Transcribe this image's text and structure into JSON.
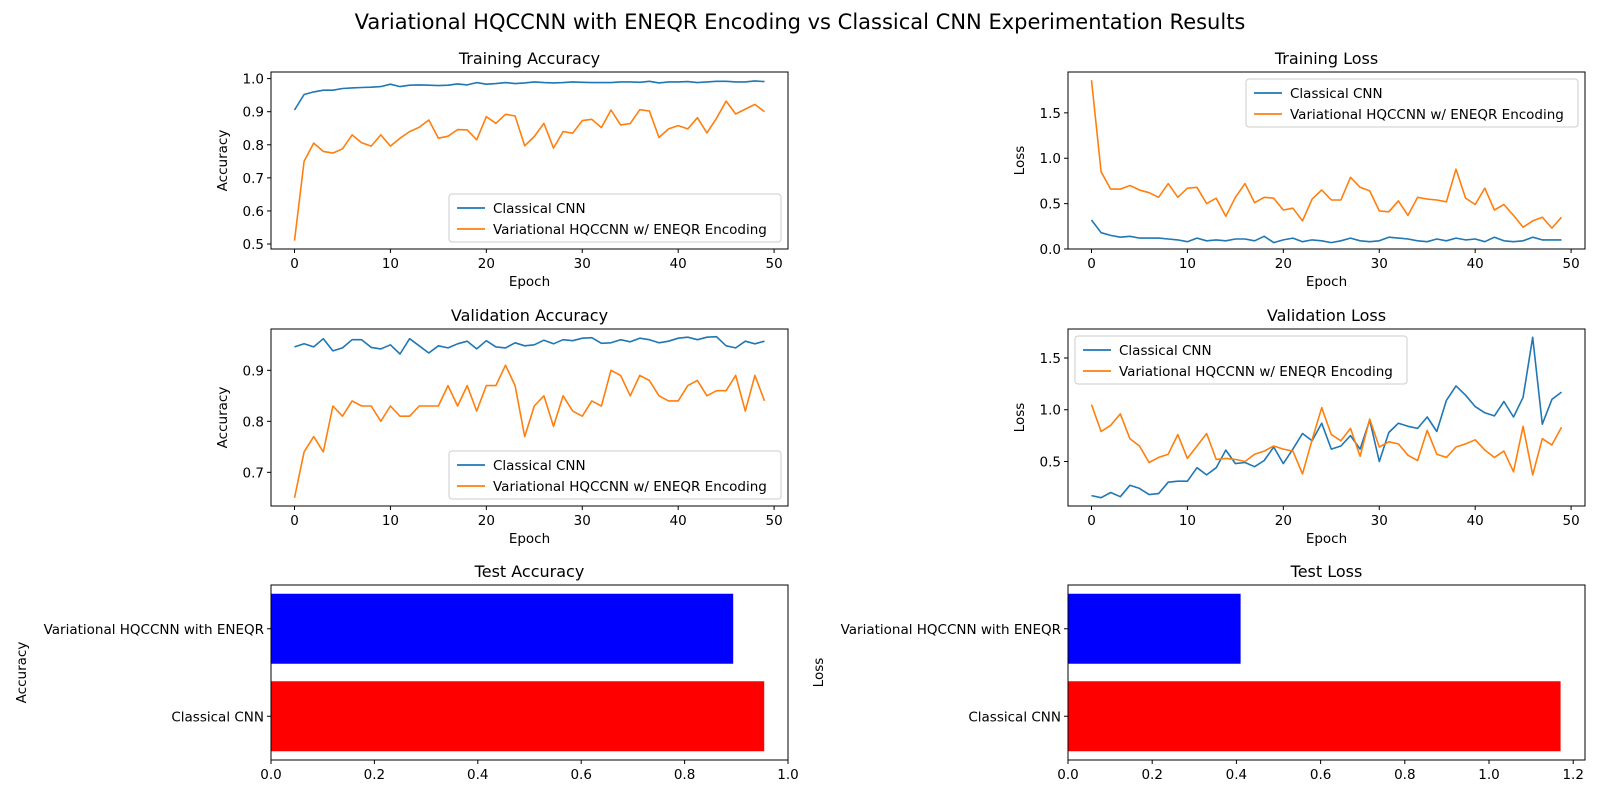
{
  "figure": {
    "title": "Variational HQCCNN with ENEQR Encoding vs Classical CNN Experimentation Results"
  },
  "colors": {
    "classical": "#1f77b4",
    "hqccnn": "#ff7f0e",
    "bar_hqccnn": "#0000ff",
    "bar_classical": "#ff0000"
  },
  "chart_data": [
    {
      "id": "training-accuracy",
      "type": "line",
      "title": "Training Accuracy",
      "xlabel": "Epoch",
      "ylabel": "Accuracy",
      "xlim": [
        -2.45,
        51.45
      ],
      "ylim": [
        0.485,
        1.02
      ],
      "xticks": [
        0,
        10,
        20,
        30,
        40,
        50
      ],
      "yticks": [
        0.5,
        0.6,
        0.7,
        0.8,
        0.9,
        1.0
      ],
      "ytick_decimals": 1,
      "legend_position": "lower-right",
      "x": [
        0,
        1,
        2,
        3,
        4,
        5,
        6,
        7,
        8,
        9,
        10,
        11,
        12,
        13,
        14,
        15,
        16,
        17,
        18,
        19,
        20,
        21,
        22,
        23,
        24,
        25,
        26,
        27,
        28,
        29,
        30,
        31,
        32,
        33,
        34,
        35,
        36,
        37,
        38,
        39,
        40,
        41,
        42,
        43,
        44,
        45,
        46,
        47,
        48,
        49
      ],
      "series": [
        {
          "name": "Classical CNN",
          "color_key": "classical",
          "values": [
            0.905,
            0.952,
            0.96,
            0.965,
            0.965,
            0.97,
            0.972,
            0.973,
            0.974,
            0.976,
            0.983,
            0.976,
            0.98,
            0.981,
            0.98,
            0.979,
            0.98,
            0.984,
            0.981,
            0.988,
            0.983,
            0.985,
            0.988,
            0.985,
            0.987,
            0.99,
            0.988,
            0.987,
            0.988,
            0.99,
            0.989,
            0.988,
            0.988,
            0.988,
            0.99,
            0.99,
            0.989,
            0.992,
            0.987,
            0.99,
            0.99,
            0.991,
            0.988,
            0.99,
            0.992,
            0.992,
            0.99,
            0.99,
            0.993,
            0.991
          ]
        },
        {
          "name": "Variational HQCCNN w/ ENEQR Encoding",
          "color_key": "hqccnn",
          "values": [
            0.51,
            0.75,
            0.805,
            0.78,
            0.775,
            0.788,
            0.83,
            0.806,
            0.796,
            0.83,
            0.796,
            0.82,
            0.84,
            0.853,
            0.875,
            0.82,
            0.826,
            0.846,
            0.845,
            0.815,
            0.885,
            0.865,
            0.892,
            0.887,
            0.797,
            0.825,
            0.865,
            0.79,
            0.84,
            0.835,
            0.873,
            0.877,
            0.852,
            0.905,
            0.86,
            0.864,
            0.906,
            0.902,
            0.822,
            0.848,
            0.858,
            0.848,
            0.882,
            0.836,
            0.88,
            0.932,
            0.893,
            0.908,
            0.922,
            0.9
          ]
        }
      ]
    },
    {
      "id": "training-loss",
      "type": "line",
      "title": "Training Loss",
      "xlabel": "Epoch",
      "ylabel": "Loss",
      "xlim": [
        -2.45,
        51.45
      ],
      "ylim": [
        0,
        1.95
      ],
      "xticks": [
        0,
        10,
        20,
        30,
        40,
        50
      ],
      "yticks": [
        0.0,
        0.5,
        1.0,
        1.5
      ],
      "ytick_decimals": 1,
      "legend_position": "upper-right",
      "x": [
        0,
        1,
        2,
        3,
        4,
        5,
        6,
        7,
        8,
        9,
        10,
        11,
        12,
        13,
        14,
        15,
        16,
        17,
        18,
        19,
        20,
        21,
        22,
        23,
        24,
        25,
        26,
        27,
        28,
        29,
        30,
        31,
        32,
        33,
        34,
        35,
        36,
        37,
        38,
        39,
        40,
        41,
        42,
        43,
        44,
        45,
        46,
        47,
        48,
        49
      ],
      "series": [
        {
          "name": "Classical CNN",
          "color_key": "classical",
          "values": [
            0.32,
            0.18,
            0.15,
            0.13,
            0.14,
            0.12,
            0.12,
            0.12,
            0.11,
            0.1,
            0.08,
            0.12,
            0.09,
            0.1,
            0.09,
            0.11,
            0.11,
            0.09,
            0.14,
            0.07,
            0.1,
            0.12,
            0.08,
            0.1,
            0.09,
            0.07,
            0.09,
            0.12,
            0.09,
            0.08,
            0.09,
            0.13,
            0.12,
            0.11,
            0.09,
            0.08,
            0.11,
            0.09,
            0.12,
            0.1,
            0.11,
            0.08,
            0.13,
            0.09,
            0.08,
            0.09,
            0.13,
            0.1,
            0.1,
            0.1
          ]
        },
        {
          "name": "Variational HQCCNN w/ ENEQR Encoding",
          "color_key": "hqccnn",
          "values": [
            1.86,
            0.85,
            0.66,
            0.66,
            0.7,
            0.65,
            0.62,
            0.57,
            0.72,
            0.57,
            0.67,
            0.68,
            0.5,
            0.56,
            0.36,
            0.57,
            0.72,
            0.51,
            0.57,
            0.56,
            0.43,
            0.45,
            0.31,
            0.55,
            0.65,
            0.54,
            0.54,
            0.79,
            0.68,
            0.64,
            0.42,
            0.41,
            0.53,
            0.37,
            0.57,
            0.55,
            0.54,
            0.52,
            0.88,
            0.56,
            0.49,
            0.67,
            0.43,
            0.49,
            0.37,
            0.24,
            0.31,
            0.35,
            0.23,
            0.35
          ]
        }
      ]
    },
    {
      "id": "validation-accuracy",
      "type": "line",
      "title": "Validation Accuracy",
      "xlabel": "Epoch",
      "ylabel": "Accuracy",
      "xlim": [
        -2.45,
        51.45
      ],
      "ylim": [
        0.634,
        0.981
      ],
      "xticks": [
        0,
        10,
        20,
        30,
        40,
        50
      ],
      "yticks": [
        0.7,
        0.8,
        0.9
      ],
      "ytick_decimals": 1,
      "legend_position": "lower-right",
      "x": [
        0,
        1,
        2,
        3,
        4,
        5,
        6,
        7,
        8,
        9,
        10,
        11,
        12,
        13,
        14,
        15,
        16,
        17,
        18,
        19,
        20,
        21,
        22,
        23,
        24,
        25,
        26,
        27,
        28,
        29,
        30,
        31,
        32,
        33,
        34,
        35,
        36,
        37,
        38,
        39,
        40,
        41,
        42,
        43,
        44,
        45,
        46,
        47,
        48,
        49
      ],
      "series": [
        {
          "name": "Classical CNN",
          "color_key": "classical",
          "values": [
            0.946,
            0.952,
            0.946,
            0.962,
            0.938,
            0.944,
            0.96,
            0.96,
            0.945,
            0.942,
            0.95,
            0.932,
            0.962,
            0.948,
            0.934,
            0.948,
            0.944,
            0.952,
            0.957,
            0.942,
            0.958,
            0.946,
            0.944,
            0.954,
            0.948,
            0.95,
            0.959,
            0.952,
            0.96,
            0.958,
            0.963,
            0.964,
            0.953,
            0.954,
            0.96,
            0.956,
            0.963,
            0.96,
            0.954,
            0.957,
            0.963,
            0.965,
            0.96,
            0.965,
            0.966,
            0.948,
            0.944,
            0.957,
            0.952,
            0.957
          ]
        },
        {
          "name": "Variational HQCCNN w/ ENEQR Encoding",
          "color_key": "hqccnn",
          "values": [
            0.65,
            0.74,
            0.77,
            0.74,
            0.83,
            0.81,
            0.84,
            0.83,
            0.83,
            0.8,
            0.83,
            0.81,
            0.81,
            0.83,
            0.83,
            0.83,
            0.87,
            0.83,
            0.87,
            0.82,
            0.87,
            0.87,
            0.91,
            0.87,
            0.77,
            0.83,
            0.85,
            0.79,
            0.85,
            0.82,
            0.81,
            0.84,
            0.83,
            0.9,
            0.89,
            0.85,
            0.89,
            0.88,
            0.85,
            0.84,
            0.84,
            0.87,
            0.88,
            0.85,
            0.86,
            0.86,
            0.89,
            0.82,
            0.89,
            0.84
          ]
        }
      ]
    },
    {
      "id": "validation-loss",
      "type": "line",
      "title": "Validation Loss",
      "xlabel": "Epoch",
      "ylabel": "Loss",
      "xlim": [
        -2.45,
        51.45
      ],
      "ylim": [
        0.07,
        1.78
      ],
      "xticks": [
        0,
        10,
        20,
        30,
        40,
        50
      ],
      "yticks": [
        0.5,
        1.0,
        1.5
      ],
      "ytick_decimals": 1,
      "legend_position": "upper-left",
      "x": [
        0,
        1,
        2,
        3,
        4,
        5,
        6,
        7,
        8,
        9,
        10,
        11,
        12,
        13,
        14,
        15,
        16,
        17,
        18,
        19,
        20,
        21,
        22,
        23,
        24,
        25,
        26,
        27,
        28,
        29,
        30,
        31,
        32,
        33,
        34,
        35,
        36,
        37,
        38,
        39,
        40,
        41,
        42,
        43,
        44,
        45,
        46,
        47,
        48,
        49
      ],
      "series": [
        {
          "name": "Classical CNN",
          "color_key": "classical",
          "values": [
            0.17,
            0.15,
            0.2,
            0.16,
            0.27,
            0.24,
            0.18,
            0.19,
            0.3,
            0.31,
            0.31,
            0.44,
            0.37,
            0.44,
            0.61,
            0.48,
            0.49,
            0.45,
            0.51,
            0.64,
            0.48,
            0.62,
            0.77,
            0.7,
            0.87,
            0.62,
            0.65,
            0.75,
            0.62,
            0.9,
            0.5,
            0.78,
            0.87,
            0.84,
            0.82,
            0.93,
            0.79,
            1.09,
            1.23,
            1.14,
            1.03,
            0.97,
            0.94,
            1.08,
            0.93,
            1.12,
            1.7,
            0.86,
            1.1,
            1.17
          ]
        },
        {
          "name": "Variational HQCCNN w/ ENEQR Encoding",
          "color_key": "hqccnn",
          "values": [
            1.05,
            0.79,
            0.85,
            0.96,
            0.72,
            0.65,
            0.49,
            0.54,
            0.57,
            0.76,
            0.53,
            0.65,
            0.77,
            0.52,
            0.53,
            0.52,
            0.5,
            0.57,
            0.6,
            0.65,
            0.62,
            0.6,
            0.38,
            0.71,
            1.02,
            0.76,
            0.7,
            0.82,
            0.55,
            0.91,
            0.64,
            0.69,
            0.67,
            0.56,
            0.51,
            0.8,
            0.57,
            0.54,
            0.64,
            0.67,
            0.71,
            0.61,
            0.54,
            0.6,
            0.4,
            0.84,
            0.37,
            0.72,
            0.66,
            0.83
          ]
        }
      ]
    },
    {
      "id": "test-accuracy",
      "type": "bar",
      "orientation": "horizontal",
      "title": "Test Accuracy",
      "ylabel": "Accuracy",
      "xlim": [
        0,
        1.0
      ],
      "xticks": [
        0.0,
        0.2,
        0.4,
        0.6,
        0.8,
        1.0
      ],
      "xtick_decimals": 1,
      "categories": [
        "Variational HQCCNN with ENEQR",
        "Classical CNN"
      ],
      "values": [
        0.894,
        0.954
      ],
      "bar_color_keys": [
        "bar_hqccnn",
        "bar_classical"
      ]
    },
    {
      "id": "test-loss",
      "type": "bar",
      "orientation": "horizontal",
      "title": "Test Loss",
      "ylabel": "Loss",
      "xlim": [
        0,
        1.228
      ],
      "xticks": [
        0.0,
        0.2,
        0.4,
        0.6,
        0.8,
        1.0,
        1.2
      ],
      "xtick_decimals": 1,
      "categories": [
        "Variational HQCCNN with ENEQR",
        "Classical CNN"
      ],
      "values": [
        0.41,
        1.17
      ],
      "bar_color_keys": [
        "bar_hqccnn",
        "bar_classical"
      ]
    }
  ]
}
